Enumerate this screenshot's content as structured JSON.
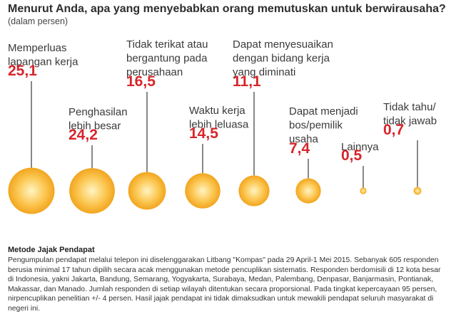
{
  "header": {
    "title": "Menurut Anda, apa yang menyebabkan orang memutuskan untuk berwirausaha?",
    "subtitle": "(dalam persen)"
  },
  "colors": {
    "value_text": "#d7252b",
    "bubble_light": "#fff4c2",
    "bubble_mid": "#fbc54e",
    "bubble_dark": "#f2a51f",
    "stem": "#555555"
  },
  "chart_data": {
    "type": "bubble",
    "categories": [
      [
        "Memperluas",
        "lapangan kerja"
      ],
      [
        "Penghasilan",
        "lebih besar"
      ],
      [
        "Tidak terikat atau",
        "bergantung pada",
        "perusahaan"
      ],
      [
        "Waktu kerja",
        "lebih leluasa"
      ],
      [
        "Dapat menyesuaikan",
        "dengan bidang kerja",
        "yang diminati"
      ],
      [
        "Dapat menjadi",
        "bos/pemilik",
        "usaha"
      ],
      [
        "Lainnya"
      ],
      [
        "Tidak tahu/",
        "tidak jawab"
      ]
    ],
    "values": [
      25.1,
      24.2,
      16.5,
      14.5,
      11.1,
      7.4,
      0.5,
      0.7
    ],
    "value_labels": [
      "25,1",
      "24,2",
      "16,5",
      "14,5",
      "11,1",
      "7,4",
      "0,5",
      "0,7"
    ]
  },
  "methodology": {
    "title": "Metode Jajak Pendapat",
    "text": "Pengumpulan pendapat melalui telepon ini diselenggarakan Litbang \"Kompas\" pada 29 April-1 Mei 2015. Sebanyak 605 responden berusia minimal 17 tahun dipilih secara acak menggunakan metode pencuplikan sistematis. Responden berdomisili di 12 kota besar di Indonesia, yakni Jakarta, Bandung, Semarang, Yogyakarta, Surabaya, Medan, Palembang, Denpasar, Banjarmasin, Pontianak, Makassar, dan Manado. Jumlah responden di setiap wilayah ditentukan secara proporsional. Pada tingkat kepercayaan 95 persen, nirpencuplikan penelitian +/- 4 persen. Hasil jajak pendapat ini tidak dimaksudkan untuk mewakili pendapat seluruh masyarakat di negeri ini."
  }
}
